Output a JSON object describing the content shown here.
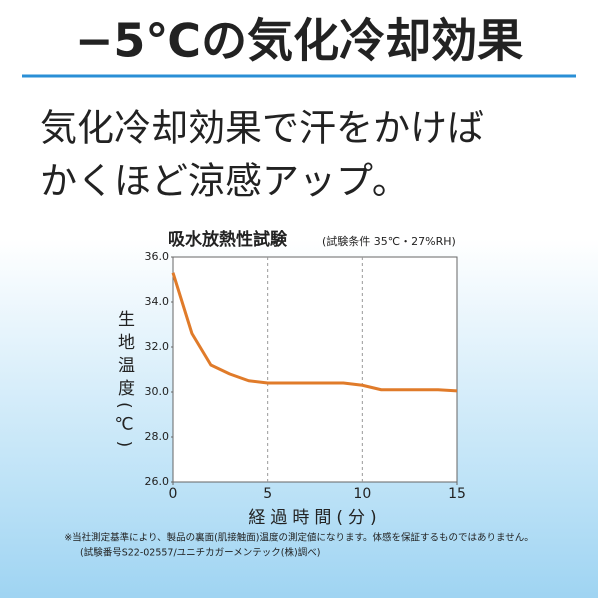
{
  "header": {
    "title": "−5℃の気化冷却効果",
    "subtitle": [
      "気化冷却効果で汗をかけば",
      "かくほど涼感アップ。"
    ]
  },
  "chart_data": {
    "type": "line",
    "title": "吸水放熱性試験",
    "subtitle": "(試験条件 35℃・27%RH)",
    "x_label": "経過時間(分)",
    "y_label": "生地温度(℃)",
    "x": [
      0,
      1,
      2,
      3,
      4,
      5,
      6,
      7,
      8,
      9,
      10,
      11,
      12,
      13,
      14,
      15
    ],
    "values": [
      35.3,
      32.6,
      31.2,
      30.8,
      30.5,
      30.4,
      30.4,
      30.4,
      30.4,
      30.4,
      30.3,
      30.1,
      30.1,
      30.1,
      30.1,
      30.05
    ],
    "color": "#e07b2a",
    "xlim": [
      0,
      15
    ],
    "xticks": [
      0,
      5,
      10,
      15
    ],
    "ylim": [
      26,
      36
    ],
    "yticks": [
      {
        "value": 26,
        "label": "26.0"
      },
      {
        "value": 28,
        "label": "28.0"
      },
      {
        "value": 30,
        "label": "30.0"
      },
      {
        "value": 32,
        "label": "32.0"
      },
      {
        "value": 34,
        "label": "34.0"
      },
      {
        "value": 36,
        "label": "36.0"
      }
    ],
    "grid": "x"
  },
  "footnote": [
    "※当社測定基準により、製品の裏面(肌接触面)温度の測定値になります。体感を保証するものではありません。",
    "(試験番号S22-02557/ユニチカガーメンテック(株)調べ)"
  ]
}
